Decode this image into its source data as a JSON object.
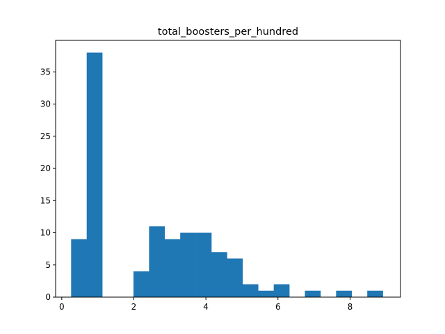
{
  "chart_data": {
    "type": "histogram",
    "title": "total_boosters_per_hundred",
    "xlabel": "",
    "ylabel": "",
    "bar_color": "#1f77b4",
    "bin_start": 0.26,
    "bin_width": 0.4325,
    "counts": [
      9,
      38,
      0,
      0,
      4,
      11,
      9,
      10,
      10,
      7,
      6,
      2,
      1,
      2,
      0,
      1,
      0,
      1,
      0,
      1
    ],
    "xlim": [
      -0.17,
      9.4
    ],
    "ylim": [
      0,
      39.9
    ],
    "x_ticks": [
      0,
      2,
      4,
      6,
      8
    ],
    "y_ticks": [
      0,
      5,
      10,
      15,
      20,
      25,
      30,
      35
    ],
    "grid": false,
    "legend": "none"
  }
}
